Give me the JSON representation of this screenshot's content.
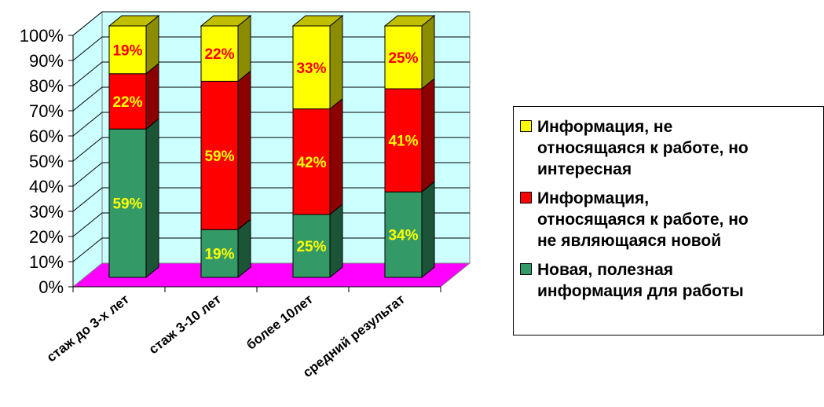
{
  "chart_data": {
    "type": "bar",
    "stacked": true,
    "percent": true,
    "three_d": true,
    "categories": [
      "стаж до 3-х лет",
      "стаж 3-10 лет",
      "более 10лет",
      "средний результат"
    ],
    "series": [
      {
        "name": "Новая, полезная\nинформация для работы",
        "values": [
          59,
          19,
          25,
          34
        ],
        "labels": [
          "59%",
          "19%",
          "25%",
          "34%"
        ],
        "color": "#339966",
        "label_color": "#FFFF00"
      },
      {
        "name": "Информация,\nотносящаяся к работе, но\nне являющаяся новой",
        "values": [
          22,
          59,
          42,
          41
        ],
        "labels": [
          "22%",
          "59%",
          "42%",
          "41%"
        ],
        "color": "#FF0000",
        "label_color": "#FFFF00"
      },
      {
        "name": "Информация, не\nотносящаяся к работе, но\nинтересная",
        "values": [
          19,
          22,
          33,
          25
        ],
        "labels": [
          "19%",
          "22%",
          "33%",
          "25%"
        ],
        "color": "#FFFF00",
        "label_color": "#FF0000"
      }
    ],
    "yticks": [
      "0%",
      "10%",
      "20%",
      "30%",
      "40%",
      "50%",
      "60%",
      "70%",
      "80%",
      "90%",
      "100%"
    ],
    "ylim": [
      0,
      100
    ],
    "grid": true,
    "wall_color": "#CCFFFF",
    "floor_color": "#FF00FF",
    "legend_position": "right"
  }
}
